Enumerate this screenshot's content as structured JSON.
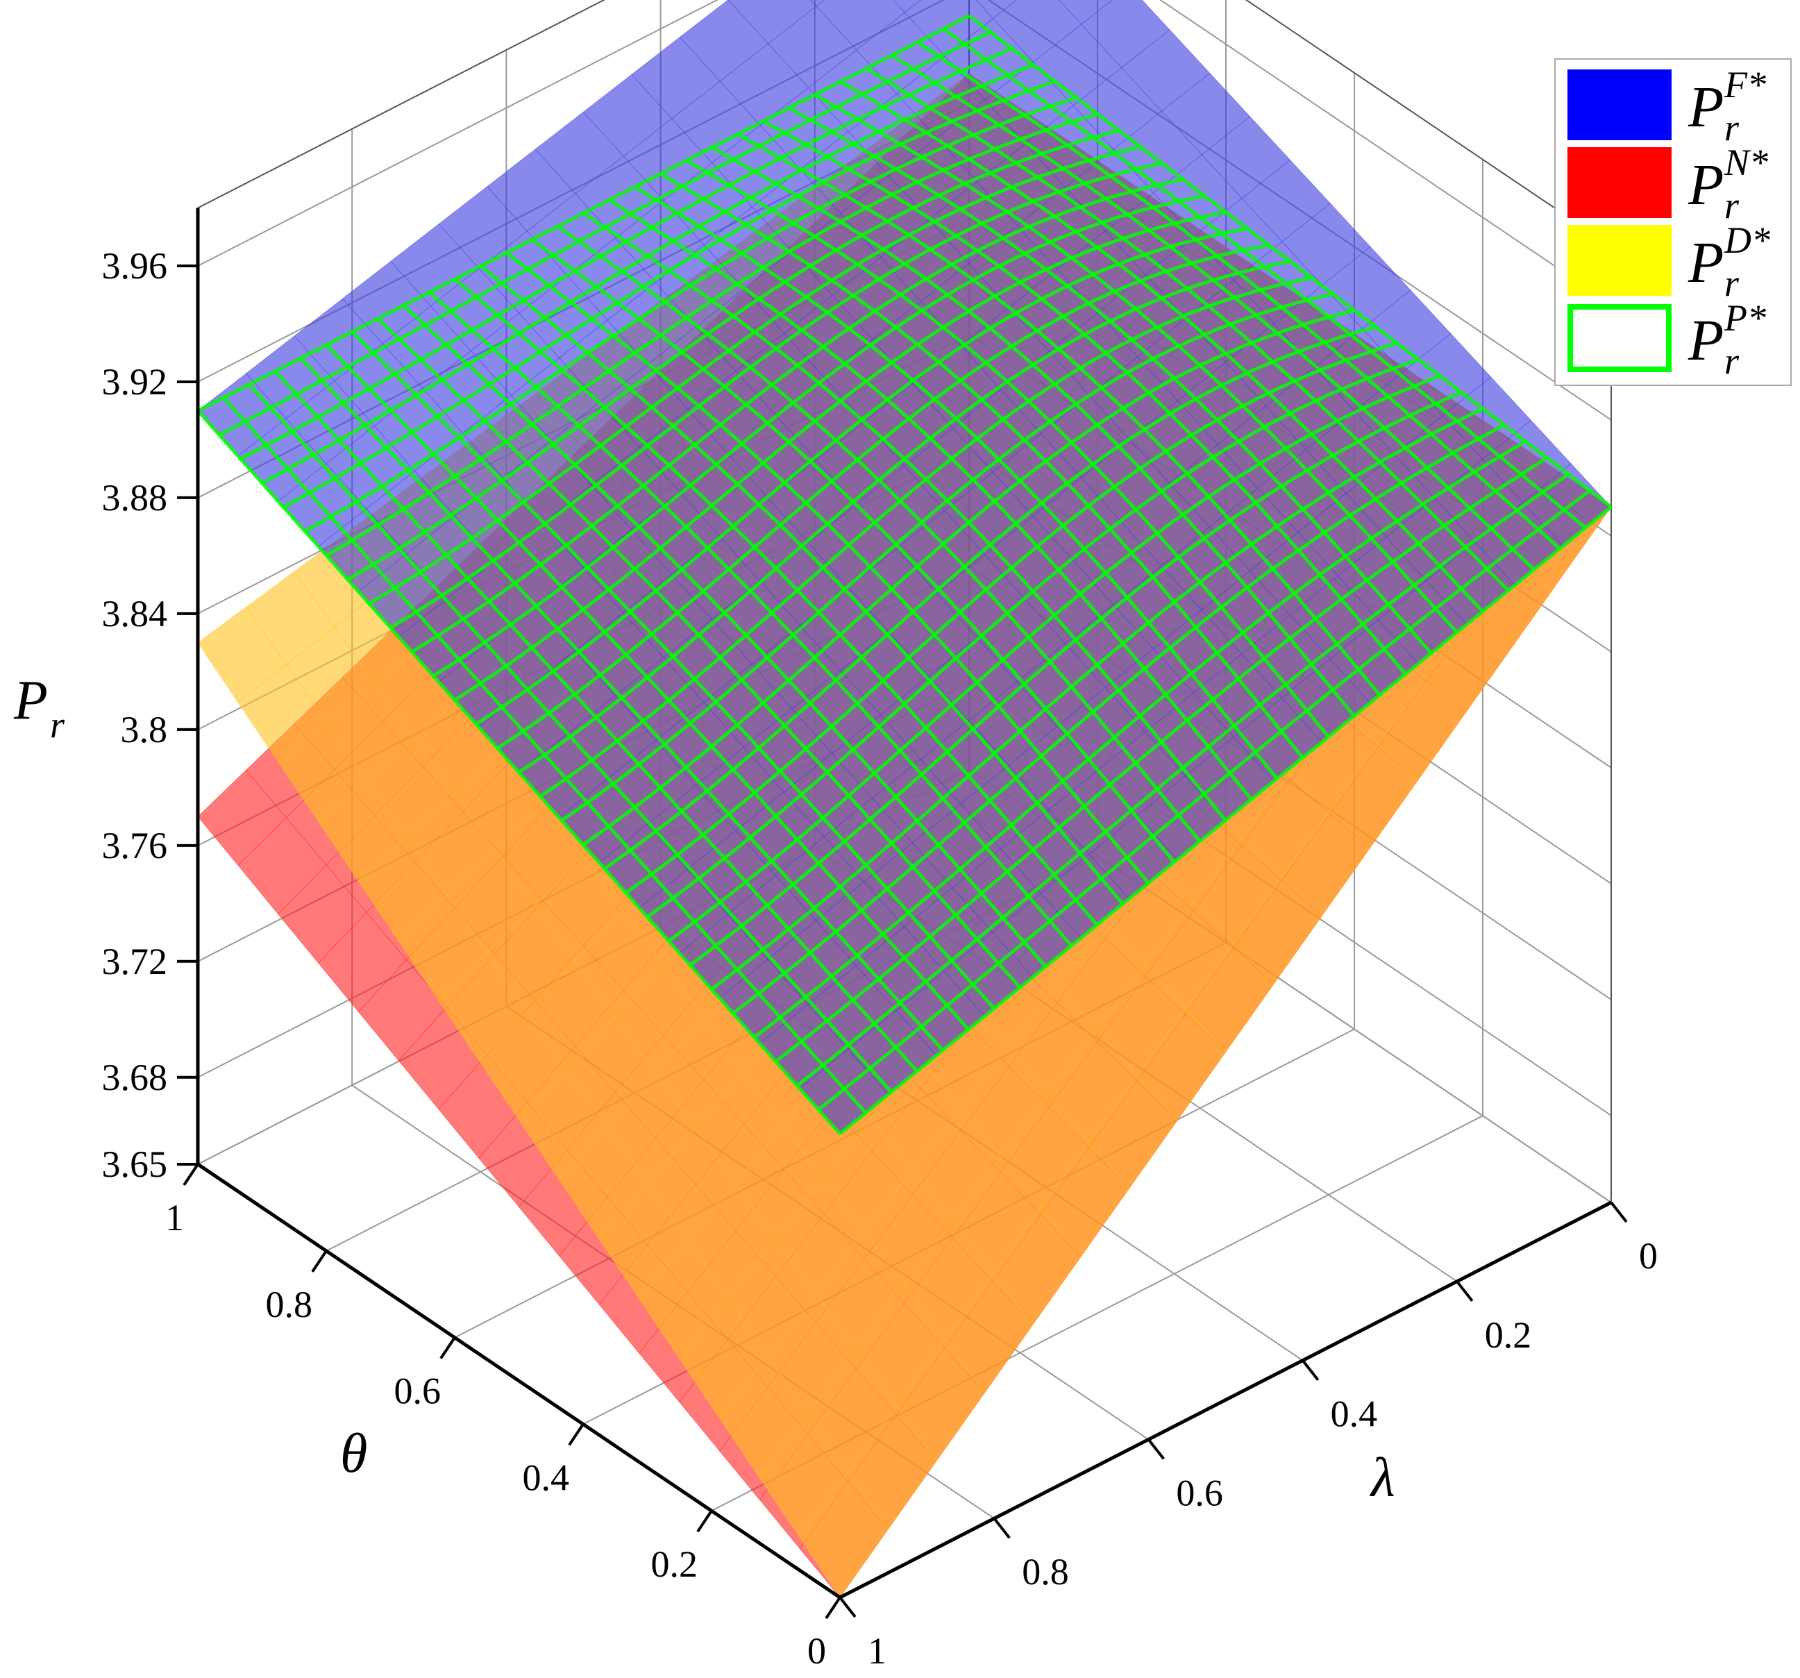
{
  "chart_data": {
    "type": "surface3d",
    "zlabel_main": "P",
    "zlabel_sub": "r",
    "theta_label": "θ",
    "lambda_label": "λ",
    "z_ticks": [
      "3.65",
      "3.68",
      "3.72",
      "3.76",
      "3.8",
      "3.84",
      "3.88",
      "3.92",
      "3.96"
    ],
    "z_tick_values": [
      3.65,
      3.68,
      3.72,
      3.76,
      3.8,
      3.84,
      3.88,
      3.92,
      3.96
    ],
    "theta_ticks": [
      "1",
      "0.8",
      "0.6",
      "0.4",
      "0.2",
      "0"
    ],
    "theta_tick_values": [
      1,
      0.8,
      0.6,
      0.4,
      0.2,
      0
    ],
    "lambda_ticks": [
      "0",
      "0.2",
      "0.4",
      "0.6",
      "0.8",
      "1"
    ],
    "lambda_tick_values": [
      0,
      0.2,
      0.4,
      0.6,
      0.8,
      1
    ],
    "zlim": [
      3.65,
      3.98
    ],
    "theta_range": [
      0,
      1
    ],
    "lambda_range": [
      0,
      1
    ],
    "grid": true,
    "legend_position": "top-right",
    "series": [
      {
        "key": "F",
        "name_main": "P",
        "name_sub": "r",
        "name_sup": "F*",
        "color": "#0000ff",
        "style": "surface",
        "corners": {
          "theta0_lambda0": 3.89,
          "theta1_lambda0": 3.98,
          "theta1_lambda1": 3.91,
          "theta0_lambda1": 3.81
        }
      },
      {
        "key": "N",
        "name_main": "P",
        "name_sub": "r",
        "name_sup": "N*",
        "color": "#ff0000",
        "style": "surface",
        "corners": {
          "theta0_lambda0": 3.89,
          "theta1_lambda0": 3.89,
          "theta1_lambda1": 3.77,
          "theta0_lambda1": 3.65
        }
      },
      {
        "key": "D",
        "name_main": "P",
        "name_sub": "r",
        "name_sup": "D*",
        "color": "#ffff00",
        "style": "surface",
        "corners": {
          "theta0_lambda0": 3.89,
          "theta1_lambda0": 3.89,
          "theta1_lambda1": 3.83,
          "theta0_lambda1": 3.65
        }
      },
      {
        "key": "P",
        "name_main": "P",
        "name_sub": "r",
        "name_sup": "P*",
        "color": "#00ff00",
        "style": "mesh",
        "corners": {
          "theta0_lambda0": 3.89,
          "theta1_lambda0": 3.91,
          "theta1_lambda1": 3.91,
          "theta0_lambda1": 3.81
        }
      }
    ]
  }
}
